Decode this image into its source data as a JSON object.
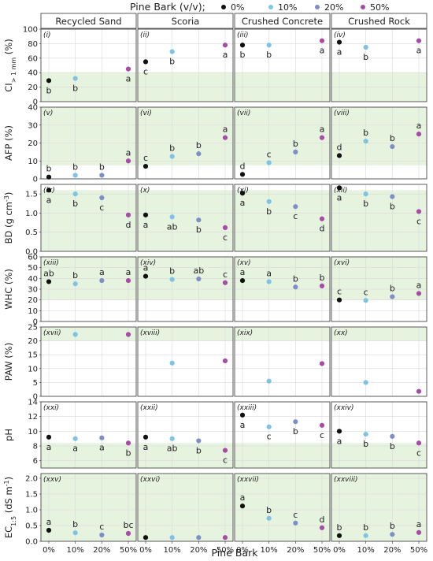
{
  "chart_data": {
    "type": "scatter",
    "legend": {
      "title": "Pine Bark (v/v);",
      "placement": "top",
      "entries": [
        {
          "label": "0%",
          "color": "#111111"
        },
        {
          "label": "10%",
          "color": "#7ec3e6"
        },
        {
          "label": "20%",
          "color": "#7e8fc7"
        },
        {
          "label": "50%",
          "color": "#a64ca6"
        }
      ]
    },
    "xlabel": "Pine Bark",
    "categories": [
      "0%",
      "10%",
      "20%",
      "50%"
    ],
    "columns": [
      "Recycled Sand",
      "Scoria",
      "Crushed Concrete",
      "Crushed Rock"
    ],
    "grid": true,
    "rows": [
      {
        "ylabel_main": "CI",
        "ylabel_sub": "> 1 mm",
        "ylabel_post": " (%)",
        "ylim": [
          0,
          100
        ],
        "ticks": [
          0,
          20,
          40,
          60,
          80,
          100
        ],
        "tick_labels": [
          "0",
          "20",
          "40",
          "60",
          "80",
          "100"
        ],
        "band": [
          0,
          40
        ],
        "panels": [
          {
            "label": "(i)",
            "values": [
              29,
              32,
              null,
              45
            ],
            "letters": [
              "b",
              "b",
              null,
              "a"
            ],
            "letter_pos": [
              "below",
              "below",
              null,
              "below"
            ]
          },
          {
            "label": "(ii)",
            "values": [
              55,
              69,
              null,
              78
            ],
            "letters": [
              "c",
              "b",
              null,
              "a"
            ],
            "letter_pos": [
              "below",
              "below",
              null,
              "below"
            ]
          },
          {
            "label": "(iii)",
            "values": [
              78,
              78,
              null,
              84
            ],
            "letters": [
              "b",
              "b",
              null,
              "a"
            ],
            "letter_pos": [
              "below",
              "below",
              null,
              "below"
            ]
          },
          {
            "label": "(iv)",
            "values": [
              82,
              75,
              null,
              84
            ],
            "letters": [
              "a",
              "b",
              null,
              "a"
            ],
            "letter_pos": [
              "below",
              "below",
              null,
              "below"
            ]
          }
        ]
      },
      {
        "ylabel_main": "AFP (%)",
        "ylabel_sub": "",
        "ylabel_post": "",
        "ylim": [
          0,
          40
        ],
        "ticks": [
          0,
          10,
          20,
          30,
          40
        ],
        "tick_labels": [
          "0",
          "10",
          "20",
          "30",
          "40"
        ],
        "band": [
          7.5,
          40
        ],
        "panels": [
          {
            "label": "(v)",
            "values": [
              1,
              2,
              2,
              10
            ],
            "letters": [
              "b",
              "b",
              "b",
              "a"
            ],
            "letter_pos": [
              "above",
              "above",
              "above",
              "above"
            ]
          },
          {
            "label": "(vi)",
            "values": [
              7,
              12.5,
              14,
              23
            ],
            "letters": [
              "c",
              "b",
              "b",
              "a"
            ],
            "letter_pos": [
              "above",
              "above",
              "above",
              "above"
            ]
          },
          {
            "label": "(vii)",
            "values": [
              2.5,
              9,
              15,
              23
            ],
            "letters": [
              "d",
              "c",
              "b",
              "a"
            ],
            "letter_pos": [
              "above",
              "above",
              "above",
              "above"
            ]
          },
          {
            "label": "(viii)",
            "values": [
              13,
              21,
              18,
              25
            ],
            "letters": [
              "d",
              "b",
              "b",
              "a"
            ],
            "letter_pos": [
              "above",
              "above",
              "above",
              "above"
            ]
          }
        ]
      },
      {
        "ylabel_main": "BD (g cm",
        "ylabel_sup": "-3",
        "ylabel_post": ")",
        "ylim": [
          0,
          1.75
        ],
        "ticks": [
          0,
          0.5,
          1.0,
          1.5
        ],
        "tick_labels": [
          "0.0",
          "0.5",
          "1.0",
          "1.5"
        ],
        "band": [
          0,
          1.6
        ],
        "panels": [
          {
            "label": "(ix)",
            "values": [
              1.6,
              1.5,
              1.4,
              0.95
            ],
            "letters": [
              "a",
              "b",
              "c",
              "d"
            ],
            "letter_pos": [
              "below",
              "below",
              "below",
              "below"
            ]
          },
          {
            "label": "(x)",
            "values": [
              0.95,
              0.9,
              0.82,
              0.62
            ],
            "letters": [
              "a",
              "ab",
              "b",
              "c"
            ],
            "letter_pos": [
              "below",
              "below",
              "below",
              "below"
            ]
          },
          {
            "label": "(xi)",
            "values": [
              1.52,
              1.3,
              1.17,
              0.85
            ],
            "letters": [
              "a",
              "b",
              "c",
              "d"
            ],
            "letter_pos": [
              "below",
              "below",
              "below",
              "below"
            ]
          },
          {
            "label": "(xii)",
            "values": [
              1.66,
              1.5,
              1.43,
              1.04
            ],
            "letters": [
              "a",
              "b",
              "b",
              "c"
            ],
            "letter_pos": [
              "below",
              "below",
              "below",
              "below"
            ]
          }
        ]
      },
      {
        "ylabel_main": "WHC (%)",
        "ylabel_sub": "",
        "ylabel_post": "",
        "ylim": [
          0,
          60
        ],
        "ticks": [
          0,
          10,
          20,
          30,
          40,
          50,
          60
        ],
        "tick_labels": [
          "0",
          "10",
          "20",
          "30",
          "40",
          "50",
          "60"
        ],
        "band": [
          20,
          60
        ],
        "panels": [
          {
            "label": "(xiii)",
            "values": [
              37,
              35,
              38,
              38
            ],
            "letters": [
              "ab",
              "b",
              "a",
              "a"
            ],
            "letter_pos": [
              "above",
              "above",
              "above",
              "above"
            ]
          },
          {
            "label": "(xiv)",
            "values": [
              42,
              39,
              39.5,
              36
            ],
            "letters": [
              "a",
              "b",
              "ab",
              "c"
            ],
            "letter_pos": [
              "above",
              "above",
              "above",
              "above"
            ]
          },
          {
            "label": "(xv)",
            "values": [
              38,
              37,
              32,
              33
            ],
            "letters": [
              "a",
              "a",
              "b",
              "b"
            ],
            "letter_pos": [
              "above",
              "above",
              "above",
              "above"
            ]
          },
          {
            "label": "(xvi)",
            "values": [
              20,
              19.5,
              23,
              26
            ],
            "letters": [
              "c",
              "c",
              "b",
              "a"
            ],
            "letter_pos": [
              "above",
              "above",
              "above",
              "above"
            ]
          }
        ]
      },
      {
        "ylabel_main": "PAW (%)",
        "ylabel_sub": "",
        "ylabel_post": "",
        "ylim": [
          0,
          25
        ],
        "ticks": [
          0,
          5,
          10,
          15,
          20,
          25
        ],
        "tick_labels": [
          "0",
          "5",
          "10",
          "15",
          "20",
          "25"
        ],
        "band": [
          20,
          25
        ],
        "panels": [
          {
            "label": "(xvii)",
            "values": [
              null,
              22.3,
              null,
              22.3
            ],
            "letters": [
              null,
              null,
              null,
              null
            ],
            "letter_pos": [
              null,
              null,
              null,
              null
            ]
          },
          {
            "label": "(xviii)",
            "values": [
              null,
              12,
              null,
              12.8
            ],
            "letters": [
              null,
              null,
              null,
              null
            ],
            "letter_pos": [
              null,
              null,
              null,
              null
            ]
          },
          {
            "label": "(xix)",
            "values": [
              null,
              5.5,
              null,
              11.8
            ],
            "letters": [
              null,
              null,
              null,
              null
            ],
            "letter_pos": [
              null,
              null,
              null,
              null
            ]
          },
          {
            "label": "(xx)",
            "values": [
              null,
              5,
              null,
              1.8
            ],
            "letters": [
              null,
              null,
              null,
              null
            ],
            "letter_pos": [
              null,
              null,
              null,
              null
            ]
          }
        ]
      },
      {
        "ylabel_main": "pH",
        "ylabel_sub": "",
        "ylabel_post": "",
        "ylim": [
          5,
          14
        ],
        "ticks": [
          6,
          8,
          10,
          12,
          14
        ],
        "tick_labels": [
          "6",
          "8",
          "10",
          "12",
          "14"
        ],
        "band": [
          5,
          8.4
        ],
        "panels": [
          {
            "label": "(xxi)",
            "values": [
              9.2,
              9.0,
              9.1,
              8.4
            ],
            "letters": [
              "a",
              "a",
              "a",
              "b"
            ],
            "letter_pos": [
              "below",
              "below",
              "below",
              "below"
            ]
          },
          {
            "label": "(xxii)",
            "values": [
              9.2,
              9.0,
              8.7,
              7.4
            ],
            "letters": [
              "a",
              "ab",
              "b",
              "c"
            ],
            "letter_pos": [
              "below",
              "below",
              "below",
              "below"
            ]
          },
          {
            "label": "(xxiii)",
            "values": [
              12.2,
              10.6,
              11.3,
              10.8
            ],
            "letters": [
              "a",
              "c",
              "b",
              "c"
            ],
            "letter_pos": [
              "below",
              "below",
              "below",
              "below"
            ]
          },
          {
            "label": "(xxiv)",
            "values": [
              10,
              9.6,
              9.3,
              8.4
            ],
            "letters": [
              "a",
              "b",
              "b",
              "c"
            ],
            "letter_pos": [
              "below",
              "below",
              "below",
              "below"
            ]
          }
        ]
      },
      {
        "ylabel_main": "EC",
        "ylabel_sub": "1:5",
        "ylabel_post": " (dS m",
        "ylabel_sup": "-1",
        "ylabel_end": ")",
        "ylim": [
          0,
          2.15
        ],
        "ticks": [
          0,
          0.5,
          1.0,
          1.5,
          2.0
        ],
        "tick_labels": [
          "0.0",
          "0.5",
          "1.0",
          "1.5",
          "2.0"
        ],
        "band": [
          0,
          2.15
        ],
        "panels": [
          {
            "label": "(xxv)",
            "values": [
              0.35,
              0.27,
              0.2,
              0.25
            ],
            "letters": [
              "a",
              "b",
              "c",
              "bc"
            ],
            "letter_pos": [
              "above",
              "above",
              "above",
              "above"
            ]
          },
          {
            "label": "(xxvi)",
            "values": [
              0.12,
              0.12,
              0.12,
              0.12
            ],
            "letters": [
              null,
              null,
              null,
              null
            ],
            "letter_pos": [
              null,
              null,
              null,
              null
            ]
          },
          {
            "label": "(xxvii)",
            "values": [
              1.12,
              0.73,
              0.58,
              0.43
            ],
            "letters": [
              "a",
              "b",
              "c",
              "d"
            ],
            "letter_pos": [
              "above",
              "above",
              "above",
              "above"
            ]
          },
          {
            "label": "(xxviii)",
            "values": [
              0.18,
              0.18,
              0.22,
              0.28
            ],
            "letters": [
              "b",
              "b",
              "b",
              "a"
            ],
            "letter_pos": [
              "above",
              "above",
              "above",
              "above"
            ]
          }
        ]
      }
    ]
  }
}
